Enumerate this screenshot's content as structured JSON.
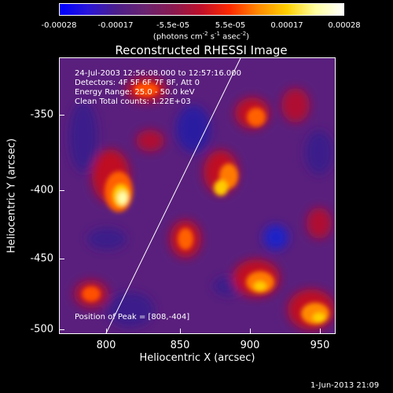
{
  "colorbar": {
    "ticks": [
      "-0.00028",
      "-0.00017",
      "-5.5e-05",
      "5.5e-05",
      "0.00017",
      "0.00028"
    ],
    "units_prefix": "(photons cm",
    "units_sup1": "-2",
    "units_mid": " s",
    "units_sup2": "-1",
    "units_mid2": " asec",
    "units_sup3": "-2",
    "units_suffix": ")",
    "gradient_colors": [
      "#0000ff",
      "#2a16d8",
      "#4c1f8a",
      "#6a2470",
      "#8a1a50",
      "#c0102a",
      "#ff2a00",
      "#ff8a00",
      "#ffd000",
      "#ffffa0",
      "#ffffff"
    ]
  },
  "plot": {
    "title": "Reconstructed RHESSI Image",
    "xlabel": "Heliocentric X (arcsec)",
    "ylabel": "Heliocentric Y (arcsec)",
    "xticks": [
      "800",
      "850",
      "900",
      "950"
    ],
    "yticks": [
      "-350",
      "-400",
      "-450",
      "-500"
    ],
    "info_lines": [
      "24-Jul-2003 12:56:08.000 to 12:57:16.000",
      "Detectors: 4F 5F 6F 7F 8F, Att 0",
      "Energy Range: 25.0 - 50.0 keV",
      "Clean    Total counts: 1.22E+03"
    ],
    "peak_label": "Position of Peak = [808,-404]"
  },
  "footer": {
    "timestamp": "1-Jun-2013 21:09"
  }
}
